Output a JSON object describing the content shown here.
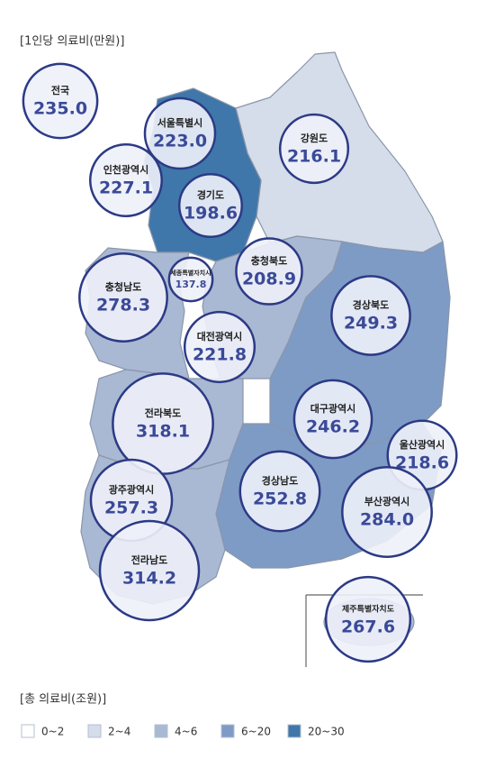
{
  "header": {
    "title": "[1인당 의료비(만원)]"
  },
  "regions": [
    {
      "name": "전국",
      "value": 235,
      "value_label": "235.0"
    },
    {
      "name": "서울특별시",
      "value": 223,
      "value_label": "223.0"
    },
    {
      "name": "인천광역시",
      "value": 227.1,
      "value_label": "227.1"
    },
    {
      "name": "경기도",
      "value": 198.6,
      "value_label": "198.6"
    },
    {
      "name": "강원도",
      "value": 216.1,
      "value_label": "216.1"
    },
    {
      "name": "세종특별자치시",
      "value": 137.8,
      "value_label": "137.8"
    },
    {
      "name": "충청남도",
      "value": 278.3,
      "value_label": "278.3"
    },
    {
      "name": "충청북도",
      "value": 208.9,
      "value_label": "208.9"
    },
    {
      "name": "대전광역시",
      "value": 221.8,
      "value_label": "221.8"
    },
    {
      "name": "경상북도",
      "value": 249.3,
      "value_label": "249.3"
    },
    {
      "name": "전라북도",
      "value": 318.1,
      "value_label": "318.1"
    },
    {
      "name": "대구광역시",
      "value": 246.2,
      "value_label": "246.2"
    },
    {
      "name": "울산광역시",
      "value": 218.6,
      "value_label": "218.6"
    },
    {
      "name": "광주광역시",
      "value": 257.3,
      "value_label": "257.3"
    },
    {
      "name": "경상남도",
      "value": 252.8,
      "value_label": "252.8"
    },
    {
      "name": "부산광역시",
      "value": 284,
      "value_label": "284.0"
    },
    {
      "name": "전라남도",
      "value": 314.2,
      "value_label": "314.2"
    },
    {
      "name": "제주특별자치도",
      "value": 267.6,
      "value_label": "267.6"
    }
  ],
  "legend": {
    "title": "[총 의료비(조원)]",
    "items": [
      {
        "label": "0~2",
        "color": "#ffffff"
      },
      {
        "label": "2~4",
        "color": "#d5dcea"
      },
      {
        "label": "4~6",
        "color": "#a9b8d3"
      },
      {
        "label": "6~20",
        "color": "#7e9bc5"
      },
      {
        "label": "20~30",
        "color": "#3f77aa"
      }
    ]
  }
}
